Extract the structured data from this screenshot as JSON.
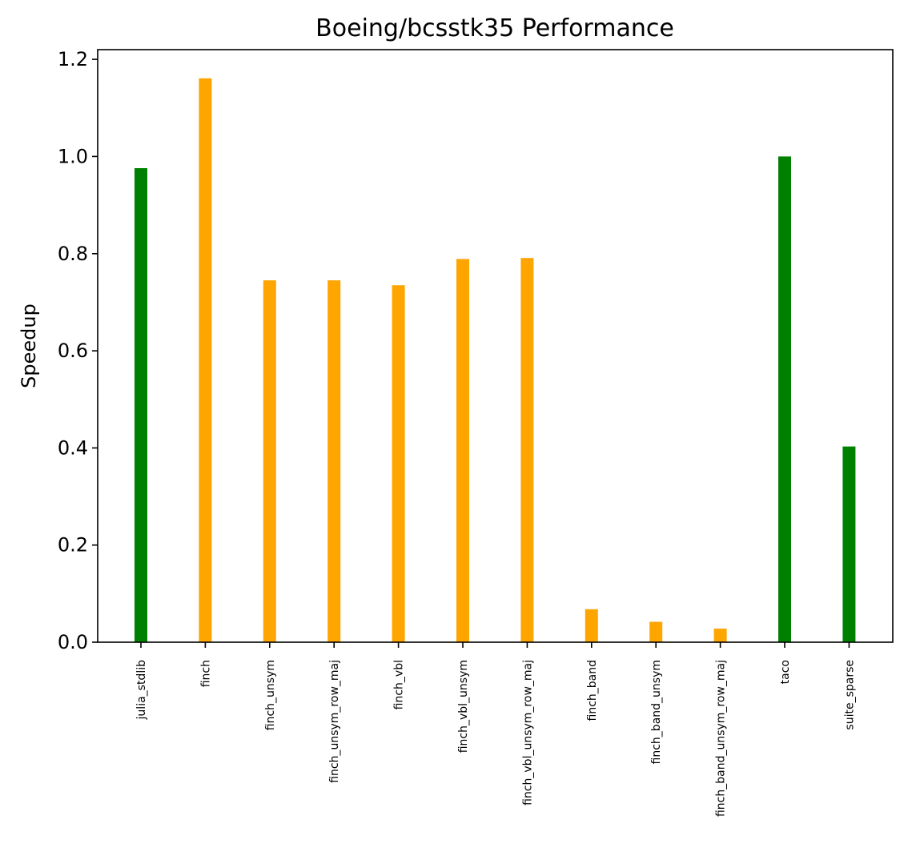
{
  "chart_data": {
    "type": "bar",
    "title": "Boeing/bcsstk35 Performance",
    "xlabel": "",
    "ylabel": "Speedup",
    "ylim": [
      0,
      1.22
    ],
    "yticks": [
      "0.0",
      "0.2",
      "0.4",
      "0.6",
      "0.8",
      "1.0",
      "1.2"
    ],
    "grid": false,
    "categories": [
      "julia_stdlib",
      "finch",
      "finch_unsym",
      "finch_unsym_row_maj",
      "finch_vbl",
      "finch_vbl_unsym",
      "finch_vbl_unsym_row_maj",
      "finch_band",
      "finch_band_unsym",
      "finch_band_unsym_row_maj",
      "taco",
      "suite_sparse"
    ],
    "values": [
      0.976,
      1.161,
      0.745,
      0.745,
      0.735,
      0.789,
      0.791,
      0.068,
      0.042,
      0.028,
      1.0,
      0.403
    ],
    "colors": [
      "#008000",
      "#ffa500",
      "#ffa500",
      "#ffa500",
      "#ffa500",
      "#ffa500",
      "#ffa500",
      "#ffa500",
      "#ffa500",
      "#ffa500",
      "#008000",
      "#008000"
    ]
  }
}
